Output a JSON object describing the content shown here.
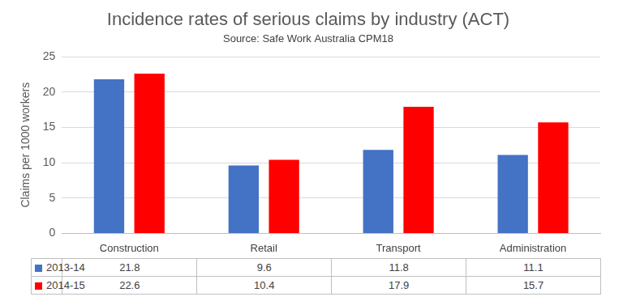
{
  "chart_data": {
    "type": "bar",
    "title": "Incidence rates of serious claims by industry (ACT)",
    "subtitle": "Source: Safe Work Australia CPM18",
    "y_label": "Claims per 1000 workers",
    "categories": [
      "Construction",
      "Retail",
      "Transport",
      "Administration"
    ],
    "series": [
      {
        "name": "2013-14",
        "color": "#4472c4",
        "values": [
          21.8,
          9.6,
          11.8,
          11.1
        ]
      },
      {
        "name": "2014-15",
        "color": "#ff0000",
        "values": [
          22.6,
          10.4,
          17.9,
          15.7
        ]
      }
    ],
    "ylim": [
      0,
      25
    ],
    "yticks": [
      0,
      5,
      10,
      15,
      20,
      25
    ],
    "grid": true,
    "legend": "bottom"
  }
}
